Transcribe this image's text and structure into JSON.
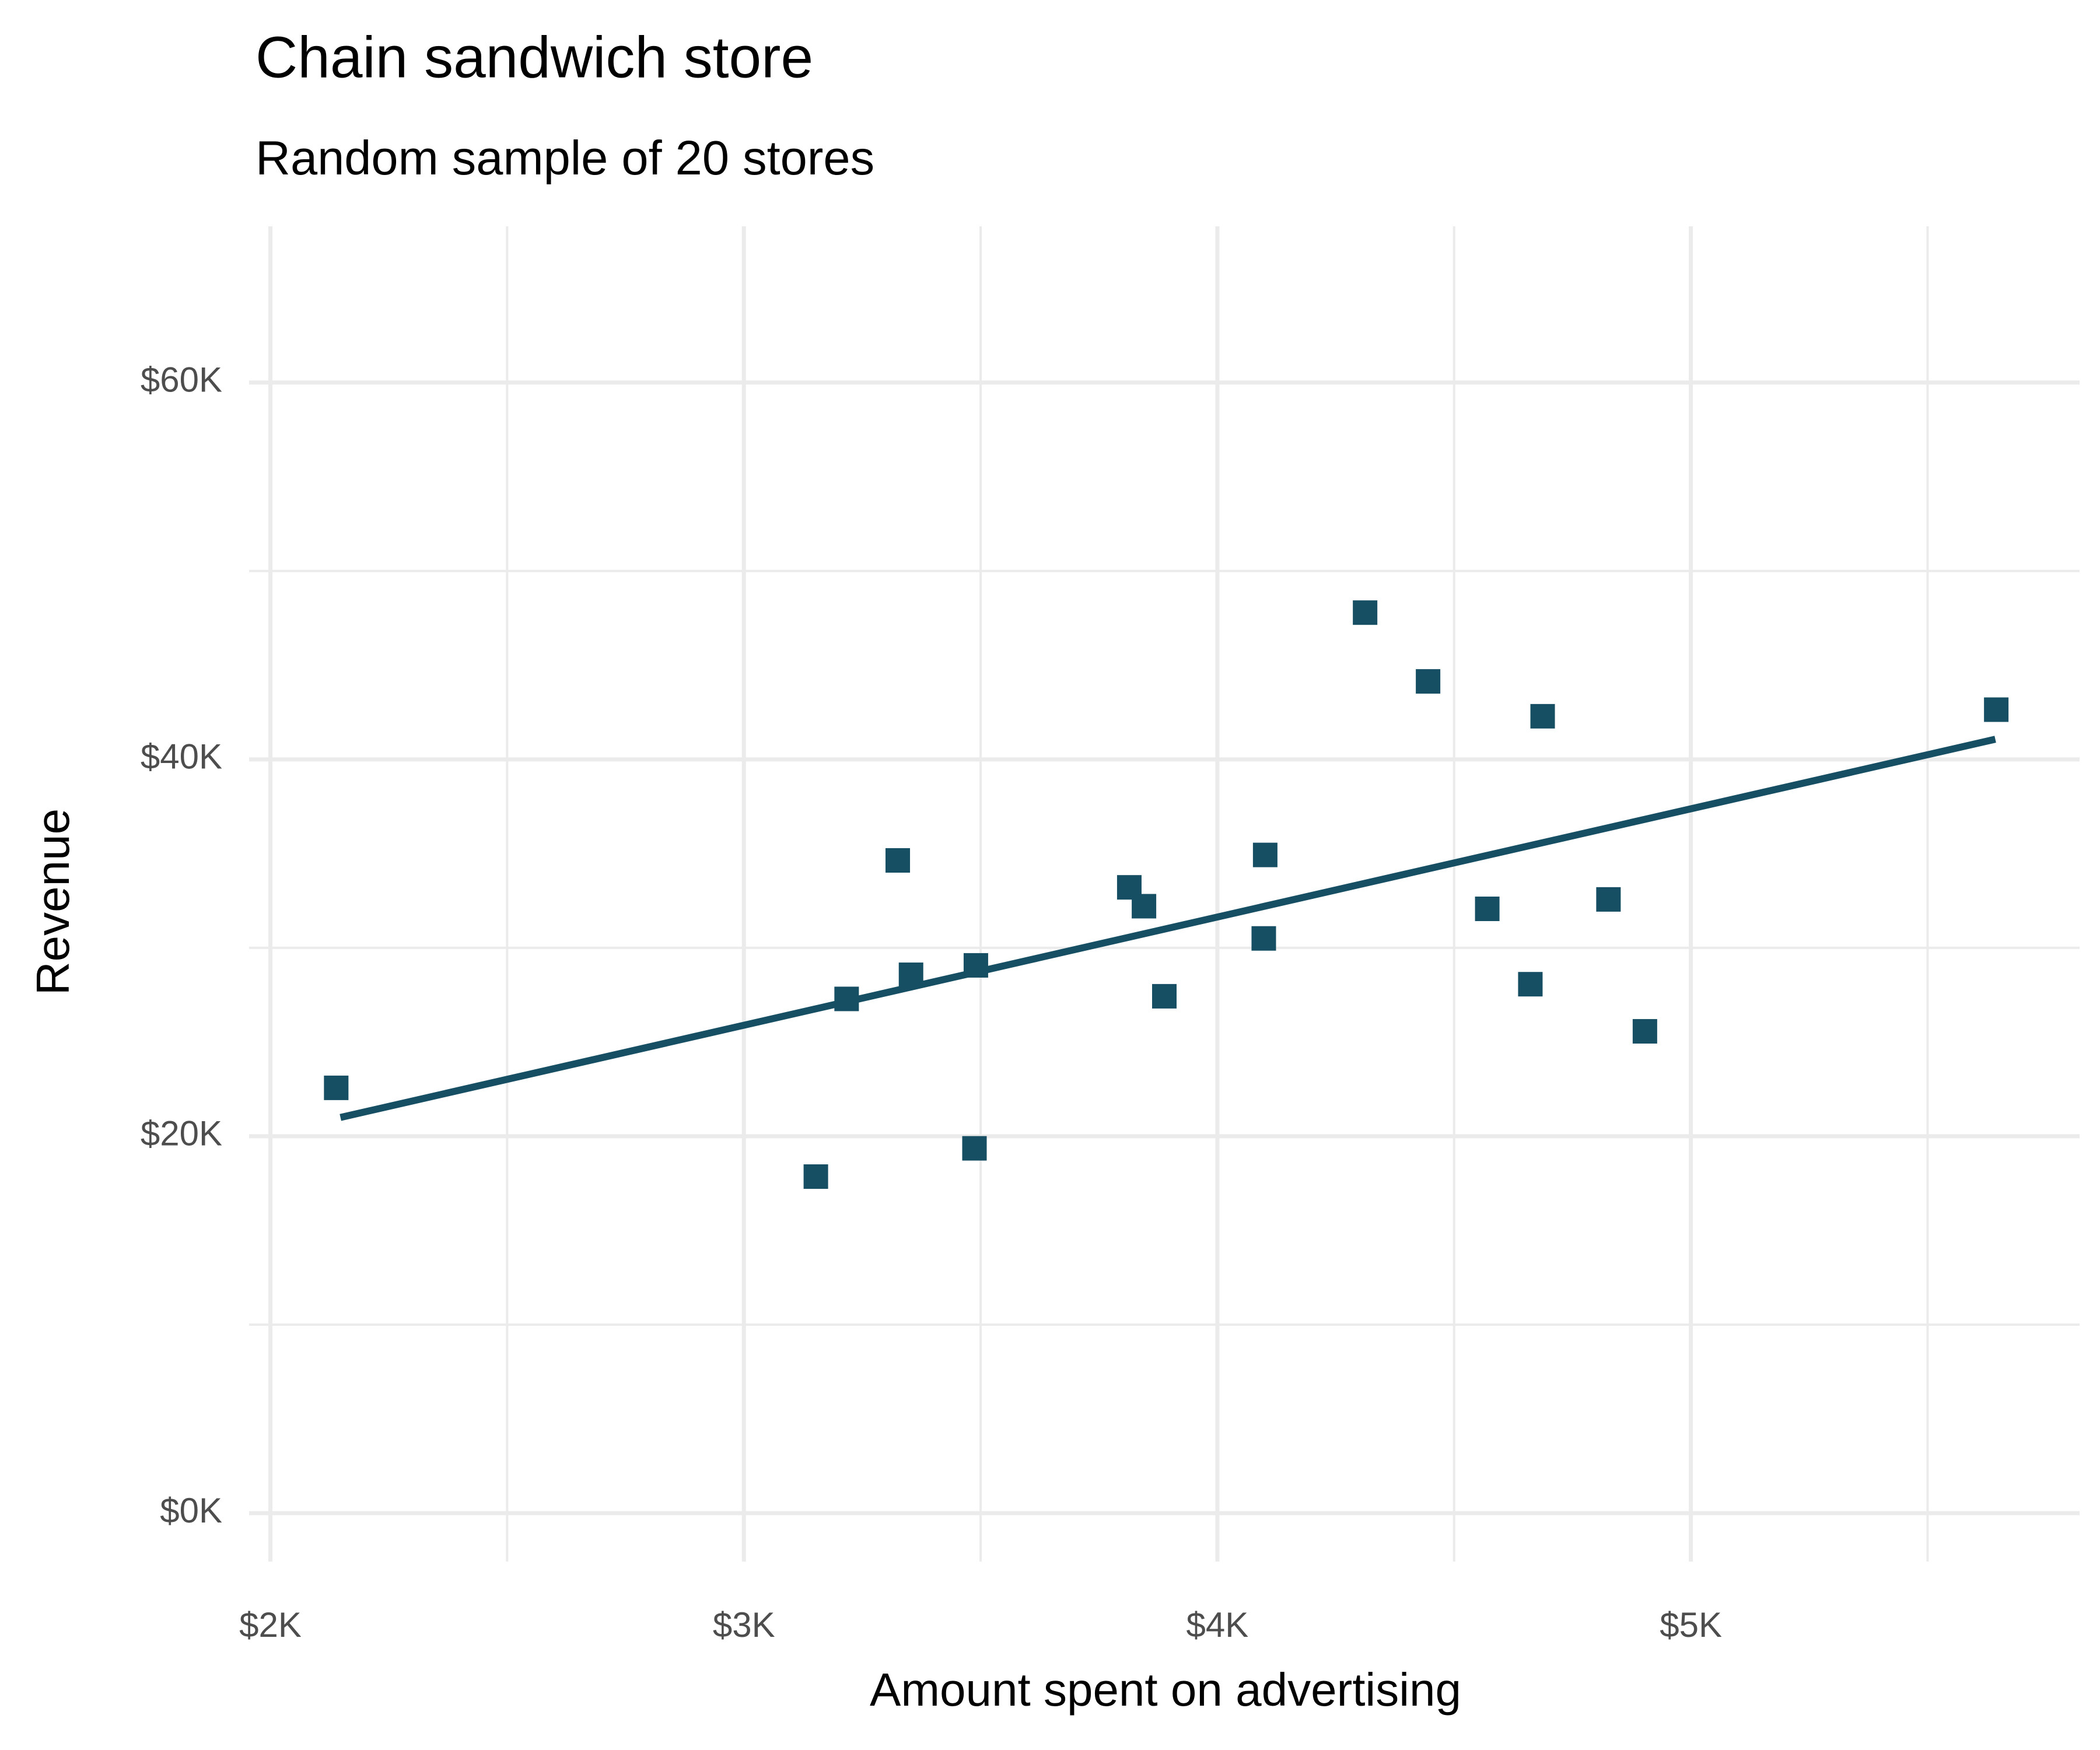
{
  "chart_data": {
    "type": "scatter",
    "title": "Chain sandwich store",
    "subtitle": "Random sample of 20 stores",
    "x_label": "Amount spent on advertising",
    "y_label": "Revenue",
    "color": "#164e63",
    "x": [
      2139,
      3152,
      3217,
      3325,
      3353,
      3487,
      3490,
      3814,
      3845,
      3888,
      4098,
      4101,
      4312,
      4445,
      4570,
      4661,
      4687,
      4826,
      4903,
      5645
    ],
    "y": [
      22570,
      17860,
      27290,
      34640,
      28570,
      19360,
      29070,
      33210,
      32210,
      27430,
      30500,
      34930,
      47790,
      44140,
      32070,
      28070,
      42290,
      32570,
      25570,
      42640
    ],
    "trend_line": {
      "x": [
        2148,
        5643
      ],
      "y": [
        21000,
        41070
      ]
    },
    "xlim": [
      1955,
      5821
    ],
    "ylim": [
      -2571,
      68290
    ],
    "xticks": [
      {
        "value": 2000,
        "label": "$2K"
      },
      {
        "value": 3000,
        "label": "$3K"
      },
      {
        "value": 4000,
        "label": "$4K"
      },
      {
        "value": 5000,
        "label": "$5K"
      }
    ],
    "yticks": [
      {
        "value": 0,
        "label": "$0K"
      },
      {
        "value": 20000,
        "label": "$20K"
      },
      {
        "value": 40000,
        "label": "$40K"
      },
      {
        "value": 60000,
        "label": "$60K"
      }
    ],
    "minor_xticks": [
      2500,
      3500,
      4500,
      5500
    ],
    "minor_yticks": [
      10000,
      30000,
      50000
    ],
    "grid": true
  }
}
